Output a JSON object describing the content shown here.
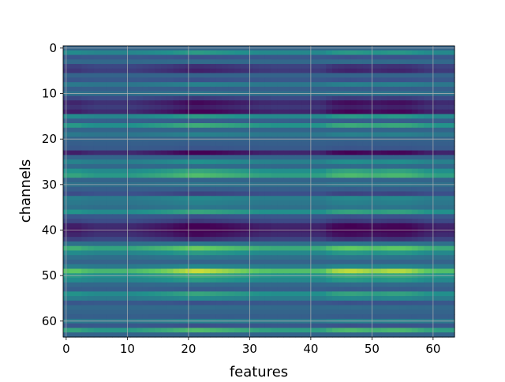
{
  "chart_data": {
    "type": "heatmap",
    "title": "",
    "xlabel": "features",
    "ylabel": "channels",
    "xlim": [
      -0.5,
      63.5
    ],
    "ylim": [
      63.5,
      -0.5
    ],
    "y_inverted": true,
    "x_ticks": [
      "0",
      "10",
      "20",
      "30",
      "40",
      "50",
      "60"
    ],
    "y_ticks": [
      "0",
      "10",
      "20",
      "30",
      "40",
      "50",
      "60"
    ],
    "grid": true,
    "colormap": "viridis",
    "n_rows": 64,
    "n_cols": 64,
    "row_levels": [
      0.3,
      0.45,
      0.25,
      0.32,
      0.18,
      0.15,
      0.3,
      0.25,
      0.38,
      0.28,
      0.35,
      0.2,
      0.1,
      0.14,
      0.08,
      0.45,
      0.28,
      0.5,
      0.3,
      0.38,
      0.3,
      0.28,
      0.26,
      0.08,
      0.3,
      0.42,
      0.32,
      0.48,
      0.55,
      0.3,
      0.35,
      0.28,
      0.22,
      0.4,
      0.38,
      0.35,
      0.48,
      0.25,
      0.2,
      0.08,
      0.06,
      0.1,
      0.18,
      0.35,
      0.6,
      0.45,
      0.35,
      0.3,
      0.4,
      0.7,
      0.5,
      0.45,
      0.32,
      0.28,
      0.48,
      0.4,
      0.25,
      0.32,
      0.3,
      0.28,
      0.38,
      0.25,
      0.55,
      0.3
    ],
    "col_gain": [
      1.0,
      1.05,
      1.05,
      0.95,
      0.9,
      0.85,
      0.85,
      0.85,
      0.85,
      0.85,
      0.85,
      0.9,
      0.95,
      1.0,
      1.05,
      1.1,
      1.15,
      1.2,
      1.3,
      1.35,
      1.45,
      1.5,
      1.5,
      1.45,
      1.4,
      1.35,
      1.3,
      1.25,
      1.2,
      1.15,
      1.1,
      1.05,
      1.0,
      1.0,
      0.95,
      0.95,
      0.95,
      0.95,
      0.95,
      0.95,
      0.95,
      0.95,
      1.0,
      1.2,
      1.35,
      1.4,
      1.45,
      1.45,
      1.4,
      1.35,
      1.3,
      1.3,
      1.35,
      1.4,
      1.4,
      1.4,
      1.35,
      1.25,
      1.15,
      1.05,
      1.0,
      0.95,
      0.95,
      0.95
    ]
  }
}
